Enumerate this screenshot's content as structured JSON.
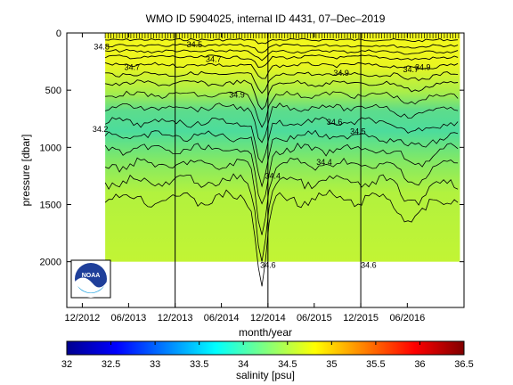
{
  "chart_data": {
    "type": "heatmap",
    "title": "WMO ID 5904025, internal ID 4431, 07–Dec–2019",
    "xlabel": "month/year",
    "ylabel": "pressure [dbar]",
    "colorbar_label": "salinity [psu]",
    "x_range": [
      "2012-10-01",
      "2017-01-10"
    ],
    "y_range": [
      0,
      2400
    ],
    "y_reversed": true,
    "x_ticks": [
      "12/2012",
      "06/2013",
      "12/2013",
      "06/2014",
      "12/2014",
      "06/2015",
      "12/2015",
      "06/2016"
    ],
    "y_ticks": [
      0,
      500,
      1000,
      1500,
      2000
    ],
    "colorbar_ticks": [
      32,
      32.5,
      33,
      33.5,
      34,
      34.5,
      35,
      35.5,
      36,
      36.5
    ],
    "colorbar_range": [
      32,
      36.5
    ],
    "year_markers": [
      "12/2013",
      "12/2014",
      "12/2015"
    ],
    "data_start": "2013-03-01",
    "data_end": "2016-12-25",
    "data_bottom_dbar": 2000,
    "contour_labels": [
      {
        "text": "34.5",
        "date": "2014-02-15",
        "p": 100
      },
      {
        "text": "34.7",
        "date": "2014-05-01",
        "p": 230
      },
      {
        "text": "34.7",
        "date": "2013-06-15",
        "p": 300
      },
      {
        "text": "34.9",
        "date": "2014-08-01",
        "p": 540
      },
      {
        "text": "34.9",
        "date": "2015-09-15",
        "p": 350
      },
      {
        "text": "34.9",
        "date": "2016-08-01",
        "p": 300
      },
      {
        "text": "34.8",
        "date": "2013-02-15",
        "p": 120
      },
      {
        "text": "34.7",
        "date": "2016-06-15",
        "p": 320
      },
      {
        "text": "34.6",
        "date": "2015-08-20",
        "p": 780
      },
      {
        "text": "34.5",
        "date": "2015-11-20",
        "p": 860
      },
      {
        "text": "34.2",
        "date": "2013-02-10",
        "p": 840
      },
      {
        "text": "34.4",
        "date": "2014-12-20",
        "p": 1250
      },
      {
        "text": "34.4",
        "date": "2015-07-10",
        "p": 1130
      },
      {
        "text": "34.6",
        "date": "2014-12-01",
        "p": 2030
      },
      {
        "text": "34.6",
        "date": "2016-01-01",
        "p": 2030
      }
    ]
  },
  "logo": {
    "text": "NOAA"
  }
}
